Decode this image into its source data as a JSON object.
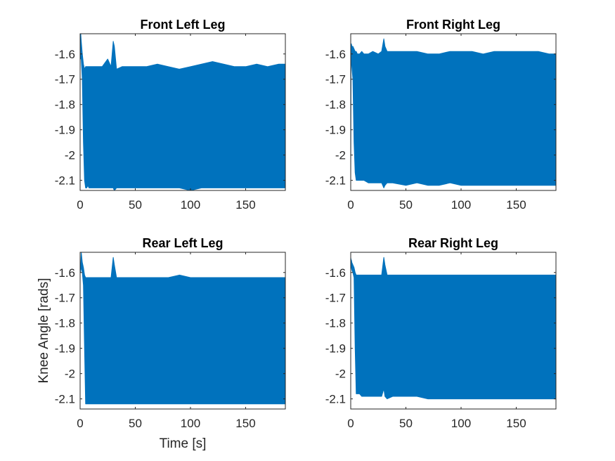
{
  "chart_data": [
    {
      "type": "line",
      "title": "Front Left Leg",
      "xlabel": "",
      "ylabel": "",
      "xlim": [
        0,
        186
      ],
      "ylim": [
        -2.14,
        -1.52
      ],
      "xticks": [
        0,
        50,
        100,
        150
      ],
      "xtick_labels": [
        "0",
        "50",
        "100",
        "150"
      ],
      "yticks": [
        -1.6,
        -1.7,
        -1.8,
        -1.9,
        -2.0,
        -2.1
      ],
      "ytick_labels": [
        "-1.6",
        "-1.7",
        "-1.8",
        "-1.9",
        "-2",
        "-2.1"
      ],
      "series": [
        {
          "color": "#0072BD",
          "x": [
            0.0,
            0.3,
            0.6,
            1.0,
            2.0,
            3.0,
            4.0,
            5.0,
            6.0,
            7.0,
            8.0,
            10.0,
            12.0,
            16.0,
            20.0,
            25.0,
            28.0,
            30.0,
            31.0,
            33.0,
            38.0,
            50.0,
            60.0,
            70.0,
            80.0,
            90.0,
            100.0,
            110.0,
            120.0,
            130.0,
            140.0,
            150.0,
            160.0,
            170.0,
            180.0,
            186.0
          ],
          "y_max": [
            -1.53,
            -1.56,
            -1.52,
            -1.55,
            -1.6,
            -1.64,
            -1.66,
            -1.65,
            -1.65,
            -1.65,
            -1.65,
            -1.65,
            -1.65,
            -1.65,
            -1.65,
            -1.62,
            -1.65,
            -1.55,
            -1.57,
            -1.66,
            -1.65,
            -1.65,
            -1.65,
            -1.64,
            -1.65,
            -1.66,
            -1.65,
            -1.64,
            -1.63,
            -1.64,
            -1.65,
            -1.65,
            -1.64,
            -1.65,
            -1.64,
            -1.64
          ],
          "y_min": [
            -1.59,
            -1.62,
            -1.58,
            -1.62,
            -1.7,
            -1.95,
            -2.1,
            -2.13,
            -2.13,
            -2.12,
            -2.13,
            -2.13,
            -2.13,
            -2.13,
            -2.13,
            -2.13,
            -2.13,
            -2.13,
            -2.14,
            -2.13,
            -2.13,
            -2.13,
            -2.13,
            -2.13,
            -2.13,
            -2.13,
            -2.14,
            -2.13,
            -2.13,
            -2.13,
            -2.13,
            -2.13,
            -2.13,
            -2.13,
            -2.13,
            -2.13
          ]
        }
      ]
    },
    {
      "type": "line",
      "title": "Front Right Leg",
      "xlabel": "",
      "ylabel": "",
      "xlim": [
        0,
        186
      ],
      "ylim": [
        -2.14,
        -1.52
      ],
      "xticks": [
        0,
        50,
        100,
        150
      ],
      "xtick_labels": [
        "0",
        "50",
        "100",
        "150"
      ],
      "yticks": [
        -1.6,
        -1.7,
        -1.8,
        -1.9,
        -2.0,
        -2.1
      ],
      "ytick_labels": [
        "-1.6",
        "-1.7",
        "-1.8",
        "-1.9",
        "-2",
        "-2.1"
      ],
      "series": [
        {
          "color": "#0072BD",
          "x": [
            0.0,
            0.3,
            0.6,
            1.0,
            2.0,
            3.0,
            4.0,
            5.0,
            6.0,
            7.0,
            8.0,
            10.0,
            12.0,
            16.0,
            20.0,
            25.0,
            28.0,
            30.0,
            31.0,
            33.0,
            38.0,
            50.0,
            60.0,
            70.0,
            80.0,
            90.0,
            100.0,
            110.0,
            120.0,
            130.0,
            140.0,
            150.0,
            160.0,
            170.0,
            180.0,
            186.0
          ],
          "y_max": [
            -1.57,
            -1.56,
            -1.56,
            -1.57,
            -1.57,
            -1.58,
            -1.59,
            -1.59,
            -1.6,
            -1.6,
            -1.6,
            -1.59,
            -1.6,
            -1.6,
            -1.59,
            -1.6,
            -1.59,
            -1.54,
            -1.57,
            -1.59,
            -1.59,
            -1.59,
            -1.59,
            -1.6,
            -1.6,
            -1.59,
            -1.59,
            -1.59,
            -1.6,
            -1.59,
            -1.59,
            -1.59,
            -1.59,
            -1.59,
            -1.6,
            -1.6
          ],
          "y_min": [
            -2.08,
            -1.6,
            -1.62,
            -1.65,
            -1.7,
            -1.95,
            -2.07,
            -2.1,
            -2.1,
            -2.1,
            -2.1,
            -2.1,
            -2.1,
            -2.11,
            -2.11,
            -2.11,
            -2.11,
            -2.13,
            -2.12,
            -2.11,
            -2.11,
            -2.12,
            -2.11,
            -2.12,
            -2.12,
            -2.11,
            -2.12,
            -2.12,
            -2.12,
            -2.12,
            -2.12,
            -2.12,
            -2.12,
            -2.12,
            -2.12,
            -2.12
          ]
        }
      ]
    },
    {
      "type": "line",
      "title": "Rear Left Leg",
      "xlabel": "Time [s]",
      "ylabel": "Knee Angle [rads]",
      "xlim": [
        0,
        186
      ],
      "ylim": [
        -2.14,
        -1.52
      ],
      "xticks": [
        0,
        50,
        100,
        150
      ],
      "xtick_labels": [
        "0",
        "50",
        "100",
        "150"
      ],
      "yticks": [
        -1.6,
        -1.7,
        -1.8,
        -1.9,
        -2.0,
        -2.1
      ],
      "ytick_labels": [
        "-1.6",
        "-1.7",
        "-1.8",
        "-1.9",
        "-2",
        "-2.1"
      ],
      "series": [
        {
          "color": "#0072BD",
          "x": [
            0.0,
            0.3,
            0.6,
            1.0,
            2.0,
            3.0,
            4.0,
            5.0,
            6.0,
            7.0,
            8.0,
            10.0,
            12.0,
            16.0,
            20.0,
            25.0,
            28.0,
            30.0,
            31.0,
            33.0,
            38.0,
            50.0,
            60.0,
            70.0,
            80.0,
            90.0,
            100.0,
            110.0,
            120.0,
            130.0,
            140.0,
            150.0,
            160.0,
            170.0,
            180.0,
            186.0
          ],
          "y_max": [
            -1.57,
            -1.57,
            -1.57,
            -1.52,
            -1.56,
            -1.58,
            -1.61,
            -1.62,
            -1.62,
            -1.62,
            -1.62,
            -1.62,
            -1.62,
            -1.62,
            -1.62,
            -1.62,
            -1.62,
            -1.54,
            -1.57,
            -1.62,
            -1.62,
            -1.62,
            -1.62,
            -1.62,
            -1.62,
            -1.61,
            -1.62,
            -1.62,
            -1.62,
            -1.62,
            -1.62,
            -1.62,
            -1.62,
            -1.62,
            -1.62,
            -1.62
          ],
          "y_min": [
            -1.6,
            -1.6,
            -1.59,
            -1.58,
            -1.6,
            -1.65,
            -1.9,
            -2.12,
            -2.12,
            -2.12,
            -2.12,
            -2.12,
            -2.12,
            -2.12,
            -2.12,
            -2.12,
            -2.12,
            -2.12,
            -2.12,
            -2.12,
            -2.12,
            -2.12,
            -2.12,
            -2.12,
            -2.12,
            -2.12,
            -2.12,
            -2.12,
            -2.12,
            -2.12,
            -2.12,
            -2.12,
            -2.12,
            -2.12,
            -2.12,
            -2.12
          ]
        }
      ]
    },
    {
      "type": "line",
      "title": "Rear Right Leg",
      "xlabel": "",
      "ylabel": "",
      "xlim": [
        0,
        186
      ],
      "ylim": [
        -2.14,
        -1.52
      ],
      "xticks": [
        0,
        50,
        100,
        150
      ],
      "xtick_labels": [
        "0",
        "50",
        "100",
        "150"
      ],
      "yticks": [
        -1.6,
        -1.7,
        -1.8,
        -1.9,
        -2.0,
        -2.1
      ],
      "ytick_labels": [
        "-1.6",
        "-1.7",
        "-1.8",
        "-1.9",
        "-2",
        "-2.1"
      ],
      "series": [
        {
          "color": "#0072BD",
          "x": [
            0.0,
            0.3,
            0.6,
            1.0,
            2.0,
            3.0,
            4.0,
            5.0,
            6.0,
            7.0,
            8.0,
            10.0,
            12.0,
            16.0,
            20.0,
            25.0,
            28.0,
            30.0,
            31.0,
            33.0,
            38.0,
            50.0,
            60.0,
            70.0,
            80.0,
            90.0,
            100.0,
            110.0,
            120.0,
            130.0,
            140.0,
            150.0,
            160.0,
            170.0,
            180.0,
            186.0
          ],
          "y_max": [
            -1.54,
            -1.55,
            -1.55,
            -1.56,
            -1.57,
            -1.58,
            -1.6,
            -1.61,
            -1.61,
            -1.61,
            -1.61,
            -1.61,
            -1.61,
            -1.61,
            -1.61,
            -1.61,
            -1.61,
            -1.54,
            -1.57,
            -1.61,
            -1.61,
            -1.61,
            -1.61,
            -1.61,
            -1.61,
            -1.61,
            -1.61,
            -1.61,
            -1.61,
            -1.61,
            -1.61,
            -1.61,
            -1.61,
            -1.61,
            -1.61,
            -1.61
          ],
          "y_min": [
            -1.57,
            -1.58,
            -1.58,
            -1.59,
            -1.6,
            -1.62,
            -1.9,
            -2.08,
            -2.08,
            -2.08,
            -2.08,
            -2.09,
            -2.09,
            -2.09,
            -2.09,
            -2.09,
            -2.09,
            -2.06,
            -2.09,
            -2.1,
            -2.09,
            -2.09,
            -2.09,
            -2.1,
            -2.1,
            -2.1,
            -2.1,
            -2.1,
            -2.1,
            -2.1,
            -2.1,
            -2.1,
            -2.1,
            -2.1,
            -2.1,
            -2.1
          ]
        }
      ]
    }
  ]
}
